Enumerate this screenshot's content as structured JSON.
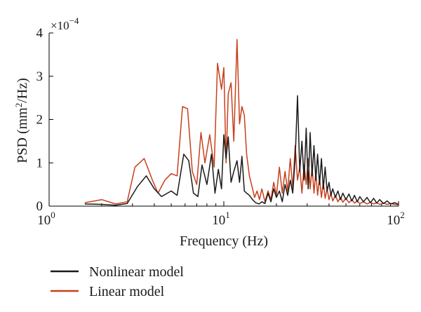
{
  "chart_data": {
    "type": "line",
    "xlabel": "Frequency (Hz)",
    "ylabel_base": "PSD (mm",
    "ylabel_sup": "2",
    "ylabel_tail": "/Hz)",
    "y_multiplier_base": "×10",
    "y_multiplier_exp": "−4",
    "x_scale": "log",
    "xlim": [
      1,
      100
    ],
    "ylim": [
      0,
      4
    ],
    "grid": false,
    "x_ticks": [
      {
        "value": 1,
        "base": "10",
        "exp": "0"
      },
      {
        "value": 10,
        "base": "10",
        "exp": "1"
      },
      {
        "value": 100,
        "base": "10",
        "exp": "2"
      }
    ],
    "y_ticks": [
      {
        "value": 0,
        "label": "0"
      },
      {
        "value": 1,
        "label": "1"
      },
      {
        "value": 2,
        "label": "2"
      },
      {
        "value": 3,
        "label": "3"
      },
      {
        "value": 4,
        "label": "4"
      }
    ],
    "legend_position": "bottom-left",
    "series": [
      {
        "name": "Nonlinear model",
        "color": "#1a1a1a",
        "x": [
          1.6,
          2.0,
          2.4,
          2.8,
          3.2,
          3.6,
          4.0,
          4.4,
          5.0,
          5.4,
          5.9,
          6.3,
          6.7,
          7.1,
          7.5,
          8.0,
          8.5,
          8.9,
          9.3,
          9.7,
          10.0,
          10.3,
          10.6,
          11.0,
          11.4,
          11.9,
          12.3,
          12.7,
          13.1,
          13.5,
          14.0,
          14.6,
          15.2,
          15.9,
          16.5,
          17.2,
          17.9,
          18.6,
          19.3,
          20.0,
          20.8,
          21.6,
          22.4,
          23.2,
          24.0,
          24.8,
          25.6,
          26.4,
          27.2,
          28.0,
          28.8,
          29.6,
          30.4,
          31.2,
          32.0,
          32.8,
          33.6,
          34.4,
          35.3,
          36.2,
          37.1,
          38.0,
          39.0,
          40.0,
          41.0,
          42.0,
          43.5,
          45.0,
          46.5,
          48.0,
          50.0,
          52.0,
          54.0,
          56.0,
          58.0,
          60.0,
          63.0,
          66.0,
          69.0,
          72.0,
          75.0,
          78.0,
          82.0,
          86.0,
          90.0,
          95.0,
          100.0
        ],
        "values": [
          0.05,
          0.04,
          0.02,
          0.06,
          0.45,
          0.7,
          0.4,
          0.22,
          0.35,
          0.25,
          1.2,
          1.05,
          0.3,
          0.22,
          0.95,
          0.5,
          1.2,
          0.3,
          0.85,
          0.4,
          1.65,
          1.1,
          1.6,
          0.55,
          0.8,
          1.05,
          0.55,
          1.15,
          0.35,
          0.3,
          0.25,
          0.15,
          0.08,
          0.05,
          0.1,
          0.06,
          0.3,
          0.1,
          0.4,
          0.2,
          0.35,
          0.1,
          0.5,
          0.25,
          0.6,
          0.3,
          1.1,
          2.55,
          0.8,
          1.5,
          0.6,
          1.8,
          0.4,
          1.7,
          0.7,
          1.4,
          0.6,
          1.2,
          0.5,
          1.1,
          0.4,
          0.9,
          0.35,
          0.55,
          0.25,
          0.4,
          0.2,
          0.35,
          0.15,
          0.3,
          0.15,
          0.28,
          0.12,
          0.25,
          0.1,
          0.22,
          0.1,
          0.2,
          0.08,
          0.18,
          0.07,
          0.15,
          0.06,
          0.12,
          0.05,
          0.08,
          0.04
        ]
      },
      {
        "name": "Linear model",
        "color": "#c7401c",
        "x": [
          1.6,
          2.0,
          2.4,
          2.8,
          3.1,
          3.5,
          3.9,
          4.2,
          4.6,
          5.0,
          5.4,
          5.8,
          6.2,
          6.6,
          7.0,
          7.4,
          7.8,
          8.3,
          8.8,
          9.2,
          9.7,
          10.0,
          10.3,
          10.6,
          11.0,
          11.4,
          11.9,
          12.3,
          12.7,
          13.1,
          13.5,
          14.0,
          14.5,
          15.0,
          15.5,
          16.0,
          16.5,
          17.2,
          17.9,
          18.6,
          19.3,
          20.0,
          20.8,
          21.6,
          22.4,
          23.2,
          24.0,
          24.8,
          25.6,
          26.4,
          27.2,
          28.0,
          28.8,
          29.6,
          30.4,
          31.2,
          32.0,
          32.8,
          33.6,
          34.4,
          35.3,
          36.2,
          37.1,
          38.0,
          39.0,
          40.0,
          41.0,
          42.0,
          43.5,
          45.0,
          46.5,
          48.0,
          50.0,
          52.0,
          54.0,
          56.0,
          58.0,
          60.0,
          63.0,
          66.0,
          69.0,
          72.0,
          75.0,
          78.0,
          82.0,
          86.0,
          90.0,
          95.0,
          100.0
        ],
        "values": [
          0.08,
          0.15,
          0.05,
          0.1,
          0.9,
          1.1,
          0.6,
          0.3,
          0.6,
          0.75,
          0.7,
          2.3,
          2.25,
          0.8,
          0.5,
          1.7,
          1.0,
          1.65,
          0.9,
          3.3,
          2.7,
          3.2,
          1.0,
          2.6,
          2.85,
          1.5,
          3.85,
          1.9,
          2.3,
          2.1,
          1.2,
          0.7,
          0.45,
          0.2,
          0.35,
          0.15,
          0.4,
          0.1,
          0.35,
          0.15,
          0.55,
          0.25,
          0.9,
          0.3,
          0.8,
          0.35,
          1.1,
          0.4,
          1.4,
          0.6,
          0.9,
          0.3,
          0.95,
          0.5,
          1.1,
          0.4,
          0.9,
          0.3,
          0.8,
          0.25,
          0.65,
          0.2,
          0.55,
          0.18,
          0.4,
          0.15,
          0.3,
          0.12,
          0.25,
          0.1,
          0.2,
          0.09,
          0.18,
          0.08,
          0.15,
          0.07,
          0.12,
          0.06,
          0.1,
          0.05,
          0.09,
          0.05,
          0.08,
          0.04,
          0.07,
          0.04,
          0.06,
          0.04,
          0.03
        ]
      }
    ]
  }
}
